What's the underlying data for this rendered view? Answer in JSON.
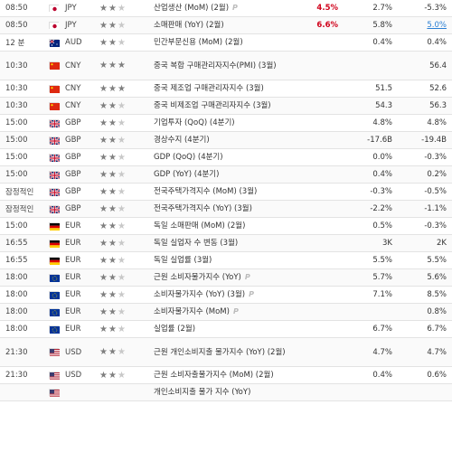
{
  "rows": [
    {
      "time": "08:50",
      "country": "jp",
      "currency": "JPY",
      "stars": 2,
      "event": "산업생산 (MoM) (2월)",
      "prelim": true,
      "actual": "4.5%",
      "actual_color": "red",
      "forecast": "2.7%",
      "previous": "-5.3%",
      "prev_color": ""
    },
    {
      "time": "08:50",
      "country": "jp",
      "currency": "JPY",
      "stars": 2,
      "event": "소매판매 (YoY) (2월)",
      "prelim": false,
      "actual": "6.6%",
      "actual_color": "red",
      "forecast": "5.8%",
      "previous": "5.0%",
      "prev_color": "blue"
    },
    {
      "time": "12 분",
      "country": "au",
      "currency": "AUD",
      "stars": 2,
      "event": "민간부문신용 (MoM) (2월)",
      "prelim": false,
      "actual": "",
      "actual_color": "",
      "forecast": "0.4%",
      "previous": "0.4%",
      "prev_color": ""
    },
    {
      "time": "10:30",
      "country": "cn",
      "currency": "CNY",
      "stars": 3,
      "event": "중국 복합 구매관리자지수(PMI) (3월)",
      "prelim": false,
      "actual": "",
      "actual_color": "",
      "forecast": "",
      "previous": "56.4",
      "prev_color": ""
    },
    {
      "time": "10:30",
      "country": "cn",
      "currency": "CNY",
      "stars": 3,
      "event": "중국 제조업 구매관리자지수 (3월)",
      "prelim": false,
      "actual": "",
      "actual_color": "",
      "forecast": "51.5",
      "previous": "52.6",
      "prev_color": ""
    },
    {
      "time": "10:30",
      "country": "cn",
      "currency": "CNY",
      "stars": 2,
      "event": "중국 비제조업 구매관리자지수 (3월)",
      "prelim": false,
      "actual": "",
      "actual_color": "",
      "forecast": "54.3",
      "previous": "56.3",
      "prev_color": ""
    },
    {
      "time": "15:00",
      "country": "gb",
      "currency": "GBP",
      "stars": 2,
      "event": "기업투자 (QoQ) (4분기)",
      "prelim": false,
      "actual": "",
      "actual_color": "",
      "forecast": "4.8%",
      "previous": "4.8%",
      "prev_color": ""
    },
    {
      "time": "15:00",
      "country": "gb",
      "currency": "GBP",
      "stars": 2,
      "event": "경상수지 (4분기)",
      "prelim": false,
      "actual": "",
      "actual_color": "",
      "forecast": "-17.6B",
      "previous": "-19.4B",
      "prev_color": ""
    },
    {
      "time": "15:00",
      "country": "gb",
      "currency": "GBP",
      "stars": 2,
      "event": "GDP (QoQ) (4분기)",
      "prelim": false,
      "actual": "",
      "actual_color": "",
      "forecast": "0.0%",
      "previous": "-0.3%",
      "prev_color": ""
    },
    {
      "time": "15:00",
      "country": "gb",
      "currency": "GBP",
      "stars": 2,
      "event": "GDP (YoY) (4분기)",
      "prelim": false,
      "actual": "",
      "actual_color": "",
      "forecast": "0.4%",
      "previous": "0.2%",
      "prev_color": ""
    },
    {
      "time": "잠정적인",
      "country": "gb",
      "currency": "GBP",
      "stars": 2,
      "event": "전국주택가격지수 (MoM) (3월)",
      "prelim": false,
      "actual": "",
      "actual_color": "",
      "forecast": "-0.3%",
      "previous": "-0.5%",
      "prev_color": ""
    },
    {
      "time": "잠정적인",
      "country": "gb",
      "currency": "GBP",
      "stars": 2,
      "event": "전국주택가격지수 (YoY) (3월)",
      "prelim": false,
      "actual": "",
      "actual_color": "",
      "forecast": "-2.2%",
      "previous": "-1.1%",
      "prev_color": ""
    },
    {
      "time": "15:00",
      "country": "de",
      "currency": "EUR",
      "stars": 2,
      "event": "독일 소매판매 (MoM) (2월)",
      "prelim": false,
      "actual": "",
      "actual_color": "",
      "forecast": "0.5%",
      "previous": "-0.3%",
      "prev_color": ""
    },
    {
      "time": "16:55",
      "country": "de",
      "currency": "EUR",
      "stars": 2,
      "event": "독일 실업자 수 변동 (3월)",
      "prelim": false,
      "actual": "",
      "actual_color": "",
      "forecast": "3K",
      "previous": "2K",
      "prev_color": ""
    },
    {
      "time": "16:55",
      "country": "de",
      "currency": "EUR",
      "stars": 2,
      "event": "독일 실업률 (3월)",
      "prelim": false,
      "actual": "",
      "actual_color": "",
      "forecast": "5.5%",
      "previous": "5.5%",
      "prev_color": ""
    },
    {
      "time": "18:00",
      "country": "eu",
      "currency": "EUR",
      "stars": 2,
      "event": "근원 소비자물가지수 (YoY)",
      "prelim": true,
      "actual": "",
      "actual_color": "",
      "forecast": "5.7%",
      "previous": "5.6%",
      "prev_color": ""
    },
    {
      "time": "18:00",
      "country": "eu",
      "currency": "EUR",
      "stars": 2,
      "event": "소비자물가지수 (YoY) (3월)",
      "prelim": true,
      "actual": "",
      "actual_color": "",
      "forecast": "7.1%",
      "previous": "8.5%",
      "prev_color": ""
    },
    {
      "time": "18:00",
      "country": "eu",
      "currency": "EUR",
      "stars": 2,
      "event": "소비자물가지수 (MoM)",
      "prelim": true,
      "actual": "",
      "actual_color": "",
      "forecast": "",
      "previous": "0.8%",
      "prev_color": ""
    },
    {
      "time": "18:00",
      "country": "eu",
      "currency": "EUR",
      "stars": 2,
      "event": "실업률 (2월)",
      "prelim": false,
      "actual": "",
      "actual_color": "",
      "forecast": "6.7%",
      "previous": "6.7%",
      "prev_color": ""
    },
    {
      "time": "21:30",
      "country": "us",
      "currency": "USD",
      "stars": 2,
      "event": "근원 개인소비지출 물가지수 (YoY) (2월)",
      "prelim": false,
      "actual": "",
      "actual_color": "",
      "forecast": "4.7%",
      "previous": "4.7%",
      "prev_color": ""
    },
    {
      "time": "21:30",
      "country": "us",
      "currency": "USD",
      "stars": 2,
      "event": "근원 소비자출물가지수 (MoM) (2월)",
      "prelim": false,
      "actual": "",
      "actual_color": "",
      "forecast": "0.4%",
      "previous": "0.6%",
      "prev_color": ""
    },
    {
      "time": "",
      "country": "us",
      "currency": "",
      "stars": 0,
      "event": "개인소비지출 물가 지수 (YoY)",
      "prelim": false,
      "actual": "",
      "actual_color": "",
      "forecast": "",
      "previous": "",
      "prev_color": ""
    }
  ],
  "colors": {
    "actual_red": "#d0021b",
    "previous_blue": "#2a7fd4"
  },
  "icons": {
    "importance": "star-icon",
    "preliminary": "preliminary-p-icon"
  }
}
